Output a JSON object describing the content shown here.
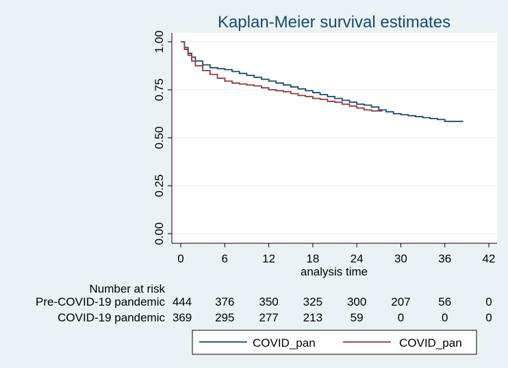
{
  "chart_data": {
    "type": "line",
    "title": "Kaplan-Meier survival estimates",
    "xlabel": "analysis time",
    "ylabel": "",
    "xlim": [
      0,
      42
    ],
    "ylim": [
      0,
      1
    ],
    "xticks": [
      "0",
      "6",
      "12",
      "18",
      "24",
      "30",
      "36",
      "42"
    ],
    "yticks": [
      "0.00",
      "0.25",
      "0.50",
      "0.75",
      "1.00"
    ],
    "grid": "horizontal",
    "series": [
      {
        "name": "COVID_pan",
        "color": "#1a476f",
        "x": [
          0,
          0.5,
          1,
          1.5,
          2,
          3,
          4,
          5,
          6,
          7,
          8,
          9,
          10,
          11,
          12,
          13,
          14,
          15,
          16,
          17,
          18,
          19,
          20,
          21,
          22,
          23,
          24,
          25,
          26,
          27,
          28,
          29,
          30,
          31,
          32,
          33,
          34,
          35,
          36,
          37,
          38.5
        ],
        "y": [
          1.0,
          0.97,
          0.94,
          0.92,
          0.9,
          0.88,
          0.865,
          0.86,
          0.855,
          0.845,
          0.835,
          0.825,
          0.815,
          0.805,
          0.795,
          0.785,
          0.775,
          0.765,
          0.755,
          0.745,
          0.735,
          0.725,
          0.715,
          0.705,
          0.695,
          0.685,
          0.675,
          0.67,
          0.66,
          0.645,
          0.635,
          0.625,
          0.62,
          0.615,
          0.61,
          0.605,
          0.6,
          0.595,
          0.585,
          0.585,
          0.585
        ]
      },
      {
        "name": "COVID_pan",
        "color": "#90353b",
        "x": [
          0,
          0.5,
          1,
          1.5,
          2,
          3,
          4,
          5,
          6,
          7,
          8,
          9,
          10,
          11,
          12,
          13,
          14,
          15,
          16,
          17,
          18,
          19,
          20,
          21,
          22,
          23,
          24,
          25,
          26,
          27.5
        ],
        "y": [
          1.0,
          0.96,
          0.93,
          0.9,
          0.875,
          0.85,
          0.83,
          0.81,
          0.795,
          0.785,
          0.78,
          0.775,
          0.77,
          0.76,
          0.75,
          0.745,
          0.74,
          0.73,
          0.72,
          0.715,
          0.705,
          0.7,
          0.69,
          0.685,
          0.675,
          0.665,
          0.655,
          0.645,
          0.64,
          0.64
        ]
      }
    ],
    "legend": {
      "position": "bottom",
      "entries": [
        "COVID_pan",
        "COVID_pan"
      ]
    },
    "risk_table": {
      "heading": "Number at risk",
      "rows": [
        {
          "label": "Pre-COVID-19 pandemic",
          "values": [
            "444",
            "376",
            "350",
            "325",
            "300",
            "207",
            "56",
            "0"
          ]
        },
        {
          "label": "COVID-19 pandemic",
          "values": [
            "369",
            "295",
            "277",
            "213",
            "59",
            "0",
            "0",
            "0"
          ]
        }
      ]
    }
  }
}
